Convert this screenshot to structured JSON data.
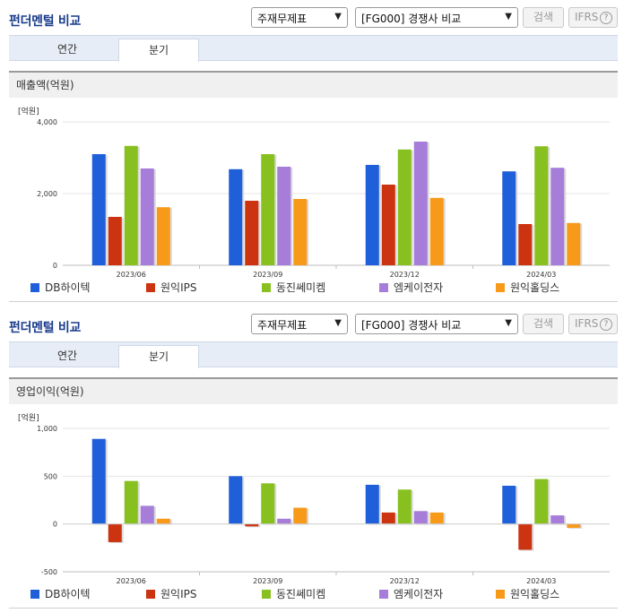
{
  "sections": [
    {
      "id": "sales",
      "title": "펀더멘털 비교",
      "select_type": "주재무제표",
      "select_compare": "[FG000] 경쟁사 비교",
      "search_label": "검색",
      "ifrs_label": "IFRS",
      "help_label": "?",
      "tabs": [
        "연간",
        "분기"
      ],
      "active_tab": "분기",
      "panel_title": "매출액(억원)",
      "unit": "[억원]"
    },
    {
      "id": "op",
      "title": "펀더멘털 비교",
      "select_type": "주재무제표",
      "select_compare": "[FG000] 경쟁사 비교",
      "search_label": "검색",
      "ifrs_label": "IFRS",
      "help_label": "?",
      "tabs": [
        "연간",
        "분기"
      ],
      "active_tab": "분기",
      "panel_title": "영업이익(억원)",
      "unit": "[억원]"
    }
  ],
  "legend": [
    {
      "name": "DB하이텍",
      "color": "#1f5fd9"
    },
    {
      "name": "원익IPS",
      "color": "#cc3311"
    },
    {
      "name": "동진쎄미켐",
      "color": "#88c020"
    },
    {
      "name": "엠케이전자",
      "color": "#a67dd8"
    },
    {
      "name": "원익홀딩스",
      "color": "#f79a1a"
    }
  ],
  "chart_data": [
    {
      "type": "bar",
      "categories": [
        "2023/06",
        "2023/09",
        "2023/12",
        "2024/03"
      ],
      "ylim": [
        0,
        4000
      ],
      "yticks": [
        "0",
        "2,000",
        "4,000"
      ],
      "ytick_values": [
        0,
        2000,
        4000
      ],
      "series": [
        {
          "name": "DB하이텍",
          "values": [
            3100,
            2680,
            2800,
            2620
          ]
        },
        {
          "name": "원익IPS",
          "values": [
            1350,
            1800,
            2250,
            1150
          ]
        },
        {
          "name": "동진쎄미켐",
          "values": [
            3330,
            3100,
            3230,
            3320
          ]
        },
        {
          "name": "엠케이전자",
          "values": [
            2700,
            2750,
            3450,
            2720
          ]
        },
        {
          "name": "원익홀딩스",
          "values": [
            1620,
            1850,
            1880,
            1180
          ]
        }
      ]
    },
    {
      "type": "bar",
      "categories": [
        "2023/06",
        "2023/09",
        "2023/12",
        "2024/03"
      ],
      "ylim": [
        -500,
        1000
      ],
      "yticks": [
        "-500",
        "0",
        "500",
        "1,000"
      ],
      "ytick_values": [
        -500,
        0,
        500,
        1000
      ],
      "series": [
        {
          "name": "DB하이텍",
          "values": [
            890,
            500,
            410,
            400
          ]
        },
        {
          "name": "원익IPS",
          "values": [
            -190,
            -25,
            120,
            -270
          ]
        },
        {
          "name": "동진쎄미켐",
          "values": [
            450,
            425,
            360,
            470
          ]
        },
        {
          "name": "엠케이전자",
          "values": [
            190,
            55,
            135,
            90
          ]
        },
        {
          "name": "원익홀딩스",
          "values": [
            55,
            170,
            120,
            -40
          ]
        }
      ]
    }
  ]
}
